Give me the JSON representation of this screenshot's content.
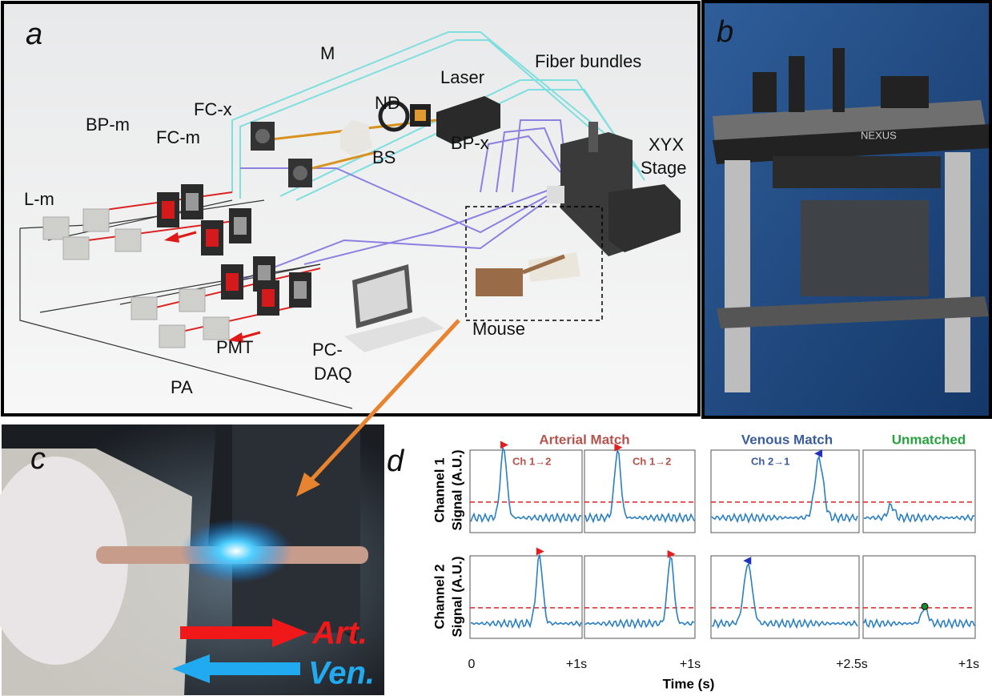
{
  "panels": {
    "a": {
      "label": "a",
      "labels": {
        "fiber_bundles": "Fiber bundles",
        "laser": "Laser",
        "m": "M",
        "fc_x": "FC-x",
        "nd": "ND",
        "bp_m": "BP-m",
        "fc_m": "FC-m",
        "bp_x": "BP-x",
        "xyx_stage": [
          "XYX",
          "Stage"
        ],
        "bs": "BS",
        "l_m": "L-m",
        "pa": "PA",
        "pmt": "PMT",
        "pc_daq": [
          "PC-",
          "DAQ"
        ],
        "mouse": "Mouse"
      }
    },
    "b": {
      "label": "b",
      "brand": "NEXUS"
    },
    "c": {
      "label": "c",
      "arrows": [
        "Art.",
        "Ven."
      ]
    },
    "d": {
      "label": "d",
      "columns": [
        "Arterial Match",
        "Venous Match",
        "Unmatched"
      ],
      "annotations": [
        "Ch 1→2",
        "Ch 1→2",
        "Ch 2→1"
      ],
      "y_labels": [
        [
          "Channel 1",
          "Signal (A.U.)"
        ],
        [
          "Channel 2",
          "Signal (A.U.)"
        ]
      ],
      "x_ticks": [
        "0",
        "+1s",
        "+1s",
        "+2.5s",
        "+1s"
      ],
      "x_label": "Time (s)"
    }
  }
}
